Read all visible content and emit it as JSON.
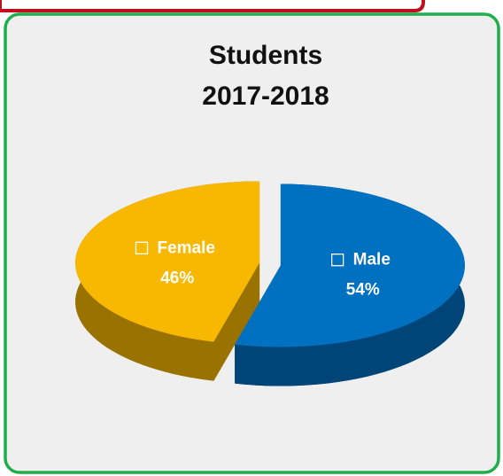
{
  "chart_data": {
    "type": "pie3d",
    "title": "Students",
    "subtitle": "2017-2018",
    "categories": [
      "Male",
      "Female"
    ],
    "values": [
      54,
      46
    ],
    "value_labels": [
      "54%",
      "46%"
    ],
    "colors": [
      "#0070c0",
      "#f8b800"
    ]
  }
}
